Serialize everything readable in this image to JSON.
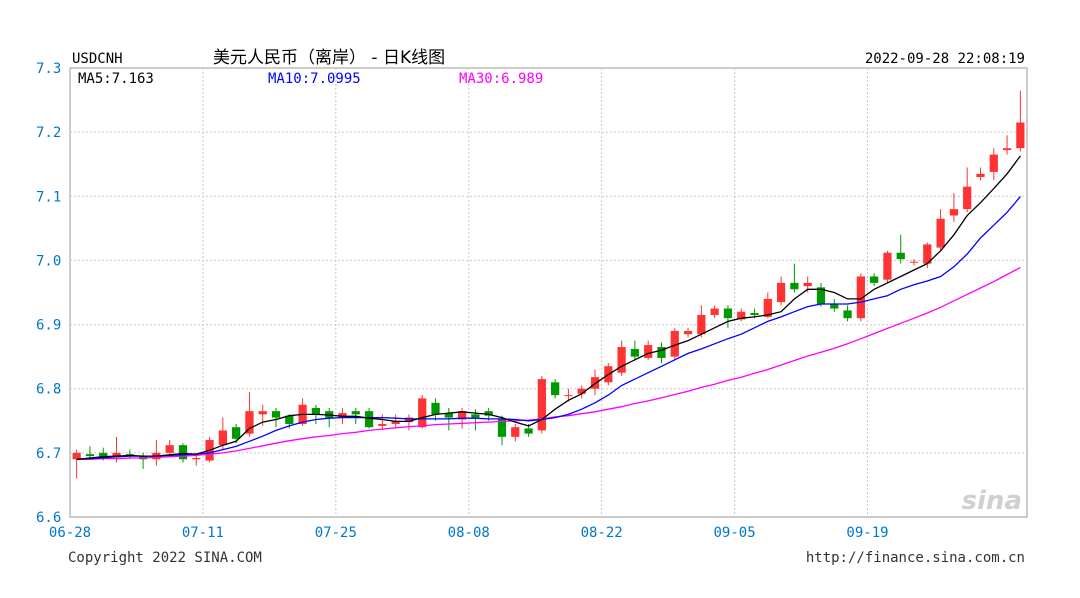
{
  "header": {
    "symbol": "USDCNH",
    "title": "美元人民币（离岸） - 日K线图",
    "datetime": "2022-09-28 22:08:19"
  },
  "legend": {
    "ma5": "MA5:7.163",
    "ma10": "MA10:7.0995",
    "ma30": "MA30:6.989"
  },
  "footer": {
    "copyright": "Copyright 2022 SINA.COM",
    "url": "http://finance.sina.com.cn"
  },
  "watermark": "sina",
  "colors": {
    "up": "#ff3333",
    "down": "#009900",
    "ma5": "#000000",
    "ma10": "#0000ff",
    "ma30": "#ff00ff",
    "axis_text": "#0077cc",
    "grid": "#c8c8c8"
  },
  "chart_data": {
    "type": "candlestick",
    "ylim": [
      6.6,
      7.3
    ],
    "yticks": [
      "6.6",
      "6.7",
      "6.8",
      "6.9",
      "7.0",
      "7.1",
      "7.2",
      "7.3"
    ],
    "xticks": [
      {
        "label": "06-28",
        "index": 0
      },
      {
        "label": "07-11",
        "index": 10
      },
      {
        "label": "07-25",
        "index": 20
      },
      {
        "label": "08-08",
        "index": 30
      },
      {
        "label": "08-22",
        "index": 40
      },
      {
        "label": "09-05",
        "index": 50
      },
      {
        "label": "09-19",
        "index": 60
      }
    ],
    "candles": [
      [
        6.69,
        6.7,
        6.66,
        6.705
      ],
      [
        6.698,
        6.695,
        6.69,
        6.71
      ],
      [
        6.7,
        6.692,
        6.688,
        6.708
      ],
      [
        6.693,
        6.7,
        6.685,
        6.725
      ],
      [
        6.698,
        6.695,
        6.69,
        6.705
      ],
      [
        6.695,
        6.69,
        6.675,
        6.7
      ],
      [
        6.69,
        6.7,
        6.68,
        6.72
      ],
      [
        6.7,
        6.712,
        6.695,
        6.72
      ],
      [
        6.712,
        6.69,
        6.685,
        6.715
      ],
      [
        6.69,
        6.692,
        6.68,
        6.7
      ],
      [
        6.688,
        6.72,
        6.685,
        6.725
      ],
      [
        6.712,
        6.735,
        6.705,
        6.755
      ],
      [
        6.74,
        6.722,
        6.715,
        6.745
      ],
      [
        6.73,
        6.765,
        6.725,
        6.795
      ],
      [
        6.76,
        6.765,
        6.742,
        6.775
      ],
      [
        6.765,
        6.755,
        6.74,
        6.77
      ],
      [
        6.758,
        6.745,
        6.738,
        6.76
      ],
      [
        6.745,
        6.775,
        6.742,
        6.785
      ],
      [
        6.77,
        6.76,
        6.745,
        6.775
      ],
      [
        6.765,
        6.755,
        6.74,
        6.77
      ],
      [
        6.755,
        6.762,
        6.745,
        6.77
      ],
      [
        6.765,
        6.76,
        6.745,
        6.77
      ],
      [
        6.765,
        6.74,
        6.738,
        6.77
      ],
      [
        6.742,
        6.745,
        6.735,
        6.76
      ],
      [
        6.745,
        6.75,
        6.74,
        6.76
      ],
      [
        6.748,
        6.755,
        6.735,
        6.76
      ],
      [
        6.74,
        6.785,
        6.738,
        6.79
      ],
      [
        6.778,
        6.76,
        6.75,
        6.785
      ],
      [
        6.762,
        6.755,
        6.735,
        6.77
      ],
      [
        6.752,
        6.765,
        6.738,
        6.77
      ],
      [
        6.76,
        6.755,
        6.735,
        6.768
      ],
      [
        6.765,
        6.758,
        6.75,
        6.77
      ],
      [
        6.752,
        6.725,
        6.712,
        6.758
      ],
      [
        6.725,
        6.74,
        6.718,
        6.745
      ],
      [
        6.738,
        6.73,
        6.725,
        6.745
      ],
      [
        6.735,
        6.815,
        6.73,
        6.82
      ],
      [
        6.81,
        6.79,
        6.785,
        6.815
      ],
      [
        6.79,
        6.79,
        6.78,
        6.8
      ],
      [
        6.792,
        6.8,
        6.785,
        6.805
      ],
      [
        6.8,
        6.818,
        6.79,
        6.83
      ],
      [
        6.81,
        6.835,
        6.805,
        6.84
      ],
      [
        6.825,
        6.865,
        6.82,
        6.875
      ],
      [
        6.862,
        6.85,
        6.845,
        6.875
      ],
      [
        6.848,
        6.868,
        6.845,
        6.875
      ],
      [
        6.865,
        6.848,
        6.84,
        6.872
      ],
      [
        6.85,
        6.89,
        6.845,
        6.895
      ],
      [
        6.885,
        6.89,
        6.88,
        6.895
      ],
      [
        6.885,
        6.915,
        6.88,
        6.93
      ],
      [
        6.915,
        6.925,
        6.91,
        6.93
      ],
      [
        6.925,
        6.91,
        6.895,
        6.93
      ],
      [
        6.908,
        6.92,
        6.905,
        6.925
      ],
      [
        6.918,
        6.915,
        6.91,
        6.925
      ],
      [
        6.912,
        6.94,
        6.91,
        6.95
      ],
      [
        6.935,
        6.965,
        6.93,
        6.975
      ],
      [
        6.965,
        6.955,
        6.95,
        6.995
      ],
      [
        6.96,
        6.965,
        6.95,
        6.975
      ],
      [
        6.958,
        6.932,
        6.928,
        6.965
      ],
      [
        6.932,
        6.925,
        6.92,
        6.94
      ],
      [
        6.922,
        6.91,
        6.905,
        6.93
      ],
      [
        6.91,
        6.975,
        6.905,
        6.98
      ],
      [
        6.975,
        6.965,
        6.96,
        6.98
      ],
      [
        6.97,
        7.012,
        6.965,
        7.015
      ],
      [
        7.012,
        7.002,
        6.995,
        7.04
      ],
      [
        6.998,
        6.998,
        6.992,
        7.002
      ],
      [
        6.995,
        7.025,
        6.988,
        7.028
      ],
      [
        7.02,
        7.065,
        7.015,
        7.08
      ],
      [
        7.07,
        7.08,
        7.06,
        7.105
      ],
      [
        7.08,
        7.115,
        7.075,
        7.145
      ],
      [
        7.13,
        7.135,
        7.125,
        7.145
      ],
      [
        7.138,
        7.165,
        7.125,
        7.175
      ],
      [
        7.172,
        7.175,
        7.165,
        7.195
      ],
      [
        7.175,
        7.215,
        7.17,
        7.265
      ]
    ],
    "ma5": [
      6.69,
      6.692,
      6.694,
      6.695,
      6.696,
      6.695,
      6.695,
      6.697,
      6.699,
      6.698,
      6.704,
      6.712,
      6.718,
      6.738,
      6.748,
      6.752,
      6.758,
      6.76,
      6.76,
      6.759,
      6.757,
      6.757,
      6.754,
      6.752,
      6.749,
      6.749,
      6.755,
      6.76,
      6.762,
      6.764,
      6.762,
      6.76,
      6.755,
      6.748,
      6.742,
      6.752,
      6.768,
      6.782,
      6.792,
      6.808,
      6.822,
      6.835,
      6.845,
      6.855,
      6.86,
      6.868,
      6.875,
      6.885,
      6.895,
      6.905,
      6.91,
      6.912,
      6.915,
      6.92,
      6.94,
      6.955,
      6.955,
      6.95,
      6.94,
      6.94,
      6.955,
      6.965,
      6.975,
      6.985,
      6.995,
      7.015,
      7.04,
      7.07,
      7.09,
      7.112,
      7.135,
      7.163
    ],
    "ma10": [
      6.69,
      6.691,
      6.692,
      6.694,
      6.695,
      6.695,
      6.695,
      6.696,
      6.697,
      6.698,
      6.7,
      6.705,
      6.71,
      6.718,
      6.726,
      6.735,
      6.742,
      6.748,
      6.752,
      6.754,
      6.755,
      6.755,
      6.755,
      6.755,
      6.754,
      6.753,
      6.753,
      6.753,
      6.753,
      6.754,
      6.754,
      6.753,
      6.753,
      6.752,
      6.75,
      6.752,
      6.755,
      6.76,
      6.768,
      6.778,
      6.79,
      6.805,
      6.815,
      6.825,
      6.835,
      6.845,
      6.855,
      6.862,
      6.87,
      6.878,
      6.885,
      6.895,
      6.905,
      6.912,
      6.92,
      6.928,
      6.932,
      6.932,
      6.932,
      6.935,
      6.94,
      6.945,
      6.955,
      6.962,
      6.968,
      6.975,
      6.99,
      7.01,
      7.035,
      7.055,
      7.075,
      7.0995
    ],
    "ma30": [
      6.69,
      6.69,
      6.691,
      6.691,
      6.692,
      6.692,
      6.693,
      6.694,
      6.695,
      6.696,
      6.698,
      6.7,
      6.703,
      6.707,
      6.711,
      6.715,
      6.719,
      6.722,
      6.725,
      6.727,
      6.73,
      6.732,
      6.735,
      6.737,
      6.739,
      6.741,
      6.742,
      6.744,
      6.745,
      6.746,
      6.747,
      6.748,
      6.749,
      6.75,
      6.751,
      6.753,
      6.756,
      6.758,
      6.761,
      6.764,
      6.768,
      6.772,
      6.777,
      6.781,
      6.786,
      6.791,
      6.796,
      6.802,
      6.807,
      6.813,
      6.818,
      6.824,
      6.83,
      6.837,
      6.844,
      6.851,
      6.857,
      6.863,
      6.87,
      6.878,
      6.886,
      6.894,
      6.902,
      6.91,
      6.918,
      6.927,
      6.937,
      6.947,
      6.957,
      6.967,
      6.978,
      6.989
    ]
  }
}
